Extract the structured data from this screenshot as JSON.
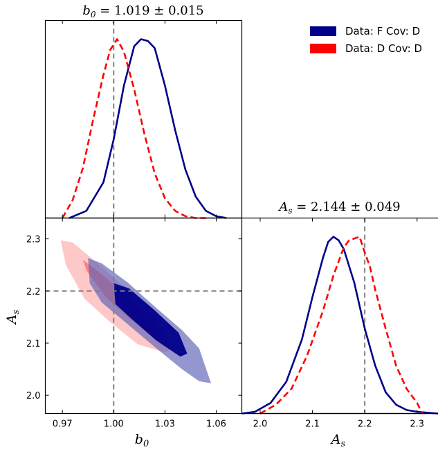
{
  "colors": {
    "blue": "#00008b",
    "red": "#ff0000",
    "truth": "#808080",
    "axis": "#000000"
  },
  "chart_data": [
    {
      "type": "line",
      "panel": "b0-marginal",
      "title": "b_0 = 1.019 ± 0.015",
      "title_parts": {
        "symbol": "b",
        "sub": "0",
        "rest": " = 1.019 ± 0.015"
      },
      "xlim": [
        0.96,
        1.075
      ],
      "ylim": [
        0,
        1.0
      ],
      "truth": 1.0,
      "series": [
        {
          "name": "Data: F Cov: D",
          "style": "solid",
          "x": [
            0.974,
            0.984,
            0.994,
            1.0,
            1.006,
            1.012,
            1.016,
            1.02,
            1.024,
            1.03,
            1.036,
            1.042,
            1.048,
            1.054,
            1.06,
            1.066
          ],
          "y": [
            0.0,
            0.04,
            0.2,
            0.44,
            0.74,
            0.96,
            1.0,
            0.99,
            0.95,
            0.74,
            0.49,
            0.27,
            0.12,
            0.04,
            0.01,
            0.0
          ]
        },
        {
          "name": "Data: D Cov: D",
          "style": "dashed",
          "x": [
            0.97,
            0.976,
            0.982,
            0.988,
            0.994,
            0.998,
            1.002,
            1.006,
            1.012,
            1.018,
            1.024,
            1.03,
            1.036,
            1.042,
            1.048,
            1.054
          ],
          "y": [
            0.0,
            0.1,
            0.28,
            0.55,
            0.8,
            0.94,
            1.0,
            0.93,
            0.72,
            0.47,
            0.25,
            0.11,
            0.04,
            0.01,
            0.0,
            0.0
          ]
        }
      ]
    },
    {
      "type": "line",
      "panel": "As-marginal",
      "title": "A_s = 2.144 ± 0.049",
      "title_parts": {
        "symbol": "A",
        "sub": "s",
        "rest": " = 2.144 ± 0.049"
      },
      "xlabel": "A_s",
      "xlabel_parts": {
        "symbol": "A",
        "sub": "s"
      },
      "xlim": [
        1.965,
        2.34
      ],
      "xticks": [
        2.0,
        2.1,
        2.2,
        2.3
      ],
      "xticklabels": [
        "2.0",
        "2.1",
        "2.2",
        "2.3"
      ],
      "ylim": [
        0,
        1.0
      ],
      "truth": 2.2,
      "series": [
        {
          "name": "Data: F Cov: D",
          "style": "solid",
          "x": [
            1.965,
            1.99,
            2.02,
            2.05,
            2.08,
            2.1,
            2.12,
            2.13,
            2.14,
            2.15,
            2.16,
            2.18,
            2.2,
            2.22,
            2.24,
            2.26,
            2.28,
            2.3,
            2.34
          ],
          "y": [
            0.0,
            0.01,
            0.06,
            0.18,
            0.42,
            0.66,
            0.88,
            0.97,
            1.0,
            0.98,
            0.93,
            0.74,
            0.48,
            0.27,
            0.12,
            0.05,
            0.02,
            0.01,
            0.0
          ]
        },
        {
          "name": "Data: D Cov: D",
          "style": "dashed",
          "x": [
            2.0,
            2.03,
            2.06,
            2.09,
            2.12,
            2.14,
            2.16,
            2.17,
            2.18,
            2.19,
            2.2,
            2.21,
            2.22,
            2.24,
            2.26,
            2.28,
            2.29,
            2.3,
            2.31
          ],
          "y": [
            0.0,
            0.05,
            0.14,
            0.33,
            0.58,
            0.78,
            0.94,
            0.98,
            0.99,
            1.0,
            0.91,
            0.83,
            0.7,
            0.48,
            0.27,
            0.14,
            0.1,
            0.06,
            0.0
          ]
        }
      ]
    },
    {
      "type": "contour",
      "panel": "b0-As-2D",
      "xlabel": "b_0",
      "xlabel_parts": {
        "symbol": "b",
        "sub": "0"
      },
      "ylabel": "A_s",
      "ylabel_parts": {
        "symbol": "A",
        "sub": "s"
      },
      "xlim": [
        0.96,
        1.075
      ],
      "ylim": [
        1.965,
        2.34
      ],
      "xticks": [
        0.97,
        1.0,
        1.03,
        1.06
      ],
      "xticklabels": [
        "0.97",
        "1.00",
        "1.03",
        "1.06"
      ],
      "yticks": [
        2.0,
        2.1,
        2.2,
        2.3
      ],
      "yticklabels": [
        "2.0",
        "2.1",
        "2.2",
        "2.3"
      ],
      "truth": {
        "x": 1.0,
        "y": 2.2
      },
      "series": [
        {
          "name": "Data: D Cov: D",
          "color": "red",
          "regions": [
            {
              "level": "95%",
              "points": [
                [
                  0.969,
                  2.297
                ],
                [
                  0.976,
                  2.293
                ],
                [
                  0.99,
                  2.255
                ],
                [
                  1.007,
                  2.205
                ],
                [
                  1.024,
                  2.16
                ],
                [
                  1.038,
                  2.12
                ],
                [
                  1.037,
                  2.093
                ],
                [
                  1.03,
                  2.082
                ],
                [
                  1.014,
                  2.098
                ],
                [
                  0.997,
                  2.143
                ],
                [
                  0.983,
                  2.185
                ],
                [
                  0.972,
                  2.25
                ]
              ]
            },
            {
              "level": "68%",
              "points": [
                [
                  0.982,
                  2.26
                ],
                [
                  0.993,
                  2.232
                ],
                [
                  1.008,
                  2.19
                ],
                [
                  1.024,
                  2.146
                ],
                [
                  1.031,
                  2.11
                ],
                [
                  1.025,
                  2.106
                ],
                [
                  1.01,
                  2.145
                ],
                [
                  0.995,
                  2.19
                ],
                [
                  0.984,
                  2.24
                ]
              ]
            }
          ]
        },
        {
          "name": "Data: F Cov: D",
          "color": "blue",
          "regions": [
            {
              "level": "95%",
              "points": [
                [
                  0.985,
                  2.263
                ],
                [
                  0.993,
                  2.253
                ],
                [
                  1.008,
                  2.217
                ],
                [
                  1.024,
                  2.17
                ],
                [
                  1.04,
                  2.125
                ],
                [
                  1.05,
                  2.09
                ],
                [
                  1.057,
                  2.023
                ],
                [
                  1.05,
                  2.027
                ],
                [
                  1.04,
                  2.05
                ],
                [
                  1.025,
                  2.09
                ],
                [
                  1.008,
                  2.137
                ],
                [
                  0.993,
                  2.178
                ],
                [
                  0.986,
                  2.215
                ]
              ]
            },
            {
              "level": "68%",
              "points": [
                [
                  1.0,
                  2.215
                ],
                [
                  1.009,
                  2.205
                ],
                [
                  1.024,
                  2.163
                ],
                [
                  1.038,
                  2.12
                ],
                [
                  1.043,
                  2.08
                ],
                [
                  1.039,
                  2.074
                ],
                [
                  1.025,
                  2.105
                ],
                [
                  1.01,
                  2.148
                ],
                [
                  1.001,
                  2.175
                ]
              ]
            }
          ]
        }
      ]
    }
  ],
  "legend": {
    "position": "top-right",
    "items": [
      {
        "label": "Data: F Cov: D",
        "color": "#00008b"
      },
      {
        "label": "Data: D Cov: D",
        "color": "#ff0000"
      }
    ]
  }
}
